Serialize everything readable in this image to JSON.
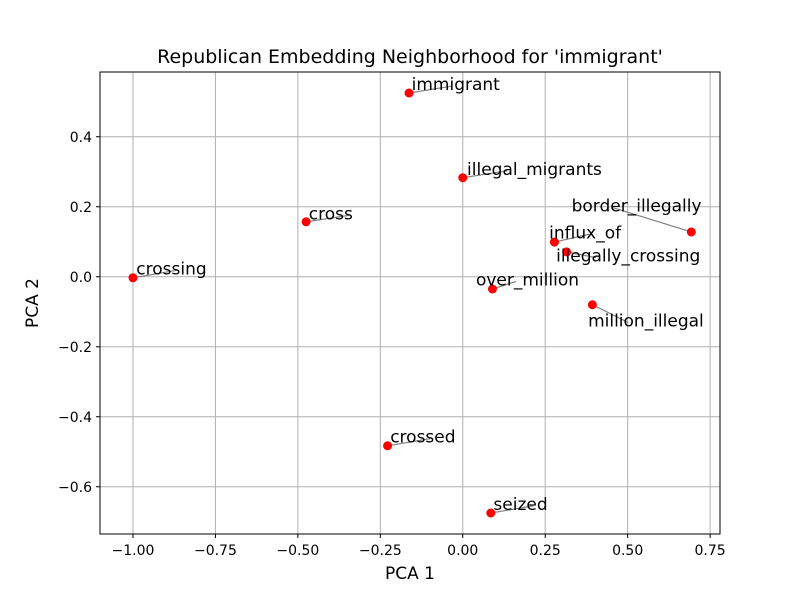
{
  "chart_data": {
    "type": "scatter",
    "title": "Republican Embedding Neighborhood for 'immigrant'",
    "xlabel": "PCA 1",
    "ylabel": "PCA 2",
    "xlim": [
      -1.1,
      0.78
    ],
    "ylim": [
      -0.735,
      0.585
    ],
    "grid": true,
    "marker_color": "#ff0000",
    "leader_color": "#808080",
    "x_ticks": [
      {
        "value": -1.0,
        "label": "−1.00"
      },
      {
        "value": -0.75,
        "label": "−0.75"
      },
      {
        "value": -0.5,
        "label": "−0.50"
      },
      {
        "value": -0.25,
        "label": "−0.25"
      },
      {
        "value": 0.0,
        "label": "0.00"
      },
      {
        "value": 0.25,
        "label": "0.25"
      },
      {
        "value": 0.5,
        "label": "0.50"
      },
      {
        "value": 0.75,
        "label": "0.75"
      }
    ],
    "y_ticks": [
      {
        "value": -0.6,
        "label": "−0.6"
      },
      {
        "value": -0.4,
        "label": "−0.4"
      },
      {
        "value": -0.2,
        "label": "−0.2"
      },
      {
        "value": 0.0,
        "label": "0.0"
      },
      {
        "value": 0.2,
        "label": "0.2"
      },
      {
        "value": 0.4,
        "label": "0.4"
      }
    ],
    "points": [
      {
        "label": "immigrant",
        "x": -0.163,
        "y": 0.525,
        "label_x": -0.155,
        "label_y": 0.533
      },
      {
        "label": "illegal_migrants",
        "x": 0.0,
        "y": 0.283,
        "label_x": 0.013,
        "label_y": 0.291
      },
      {
        "label": "cross",
        "x": -0.475,
        "y": 0.157,
        "label_x": -0.467,
        "label_y": 0.164
      },
      {
        "label": "border_illegally",
        "x": 0.693,
        "y": 0.128,
        "label_x": 0.33,
        "label_y": 0.187
      },
      {
        "label": "influx_of",
        "x": 0.278,
        "y": 0.099,
        "label_x": 0.262,
        "label_y": 0.11
      },
      {
        "label": "illegally_crossing",
        "x": 0.315,
        "y": 0.071,
        "label_x": 0.283,
        "label_y": 0.043
      },
      {
        "label": "crossing",
        "x": -1.0,
        "y": -0.003,
        "label_x": -0.99,
        "label_y": 0.007
      },
      {
        "label": "over_million",
        "x": 0.09,
        "y": -0.035,
        "label_x": 0.04,
        "label_y": -0.025
      },
      {
        "label": "million_illegal",
        "x": 0.393,
        "y": -0.08,
        "label_x": 0.38,
        "label_y": -0.142
      },
      {
        "label": "crossed",
        "x": -0.228,
        "y": -0.483,
        "label_x": -0.22,
        "label_y": -0.474
      },
      {
        "label": "seized",
        "x": 0.085,
        "y": -0.675,
        "label_x": 0.093,
        "label_y": -0.666
      }
    ]
  }
}
